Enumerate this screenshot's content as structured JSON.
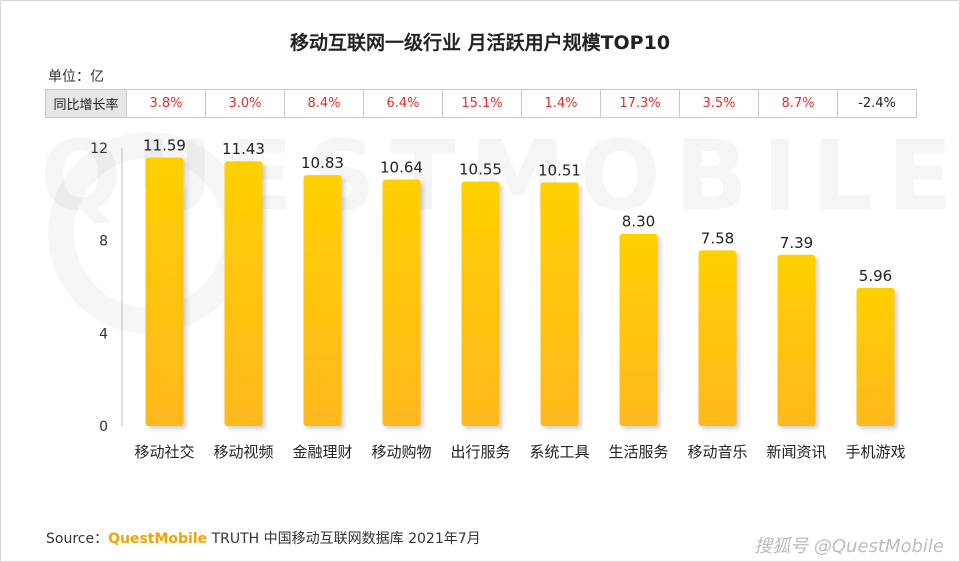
{
  "chart_data": {
    "type": "bar",
    "title": "移动互联网一级行业 月活跃用户规模TOP10",
    "unit_label": "单位：亿",
    "categories": [
      "移动社交",
      "移动视频",
      "金融理财",
      "移动购物",
      "出行服务",
      "系统工具",
      "生活服务",
      "移动音乐",
      "新闻资讯",
      "手机游戏"
    ],
    "values": [
      11.59,
      11.43,
      10.83,
      10.64,
      10.55,
      10.51,
      8.3,
      7.58,
      7.39,
      5.96
    ],
    "value_labels": [
      "11.59",
      "11.43",
      "10.83",
      "10.64",
      "10.55",
      "10.51",
      "8.30",
      "7.58",
      "7.39",
      "5.96"
    ],
    "ylim": [
      0,
      12
    ],
    "yticks": [
      "0",
      "4",
      "8",
      "12"
    ],
    "yoy": {
      "label": "同比增长率",
      "values": [
        "3.8%",
        "3.0%",
        "8.4%",
        "6.4%",
        "15.1%",
        "1.4%",
        "17.3%",
        "3.5%",
        "8.7%",
        "-2.4%"
      ]
    },
    "colors": {
      "bar_top": "#ffd000",
      "bar_bottom": "#ffb81c",
      "positive": "#e0312a",
      "negative": "#222222"
    }
  },
  "watermark": "QUESTMOBILE",
  "source": {
    "prefix": "Source：",
    "brand": "QuestMobile",
    "rest": " TRUTH 中国移动互联网数据库 2021年7月"
  },
  "credit": "搜狐号 @QuestMobile"
}
